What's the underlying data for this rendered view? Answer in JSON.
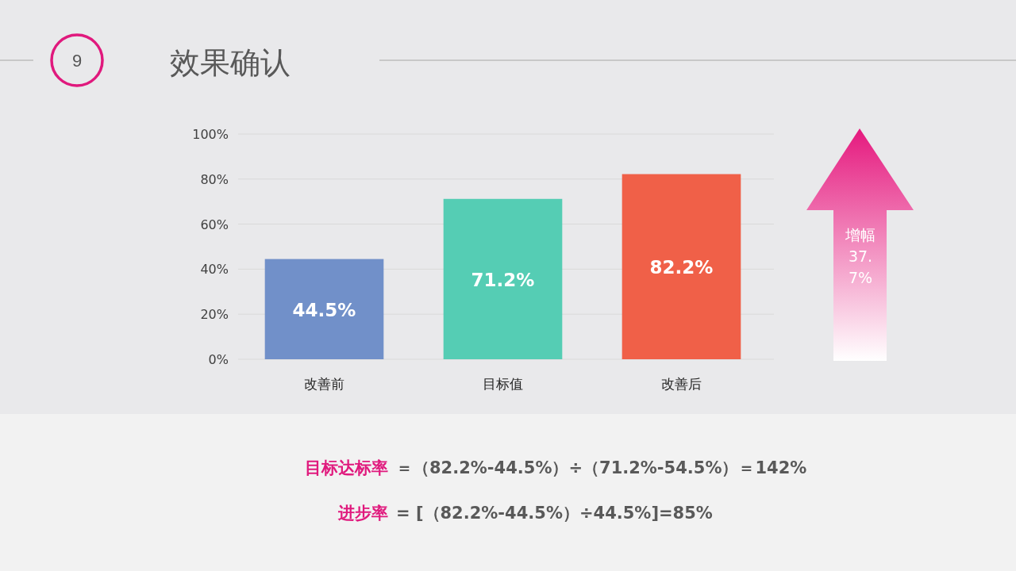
{
  "chart_data": {
    "type": "bar",
    "title": "效果确认",
    "categories": [
      "改善前",
      "目标值",
      "改善后"
    ],
    "values": [
      44.5,
      71.2,
      82.2
    ],
    "colors": [
      "#7190c9",
      "#55cdb4",
      "#f06048"
    ],
    "value_labels": [
      "44.5%",
      "71.2%",
      "82.2%"
    ],
    "ylim": [
      0,
      100
    ],
    "yticks": [
      {
        "value": 0,
        "label": "0%"
      },
      {
        "value": 20,
        "label": "20%"
      },
      {
        "value": 40,
        "label": "40%"
      },
      {
        "value": 60,
        "label": "60%"
      },
      {
        "value": 80,
        "label": "80%"
      },
      {
        "value": 100,
        "label": "100%"
      }
    ],
    "grid": "y",
    "annotations": [
      "9",
      "增幅37.7%",
      "目标达标率",
      "＝（82.2%-44.5%）÷（71.2%-54.5%）＝142%",
      "进步率",
      "= [（82.2%-44.5%）÷44.5%]=85%"
    ]
  }
}
